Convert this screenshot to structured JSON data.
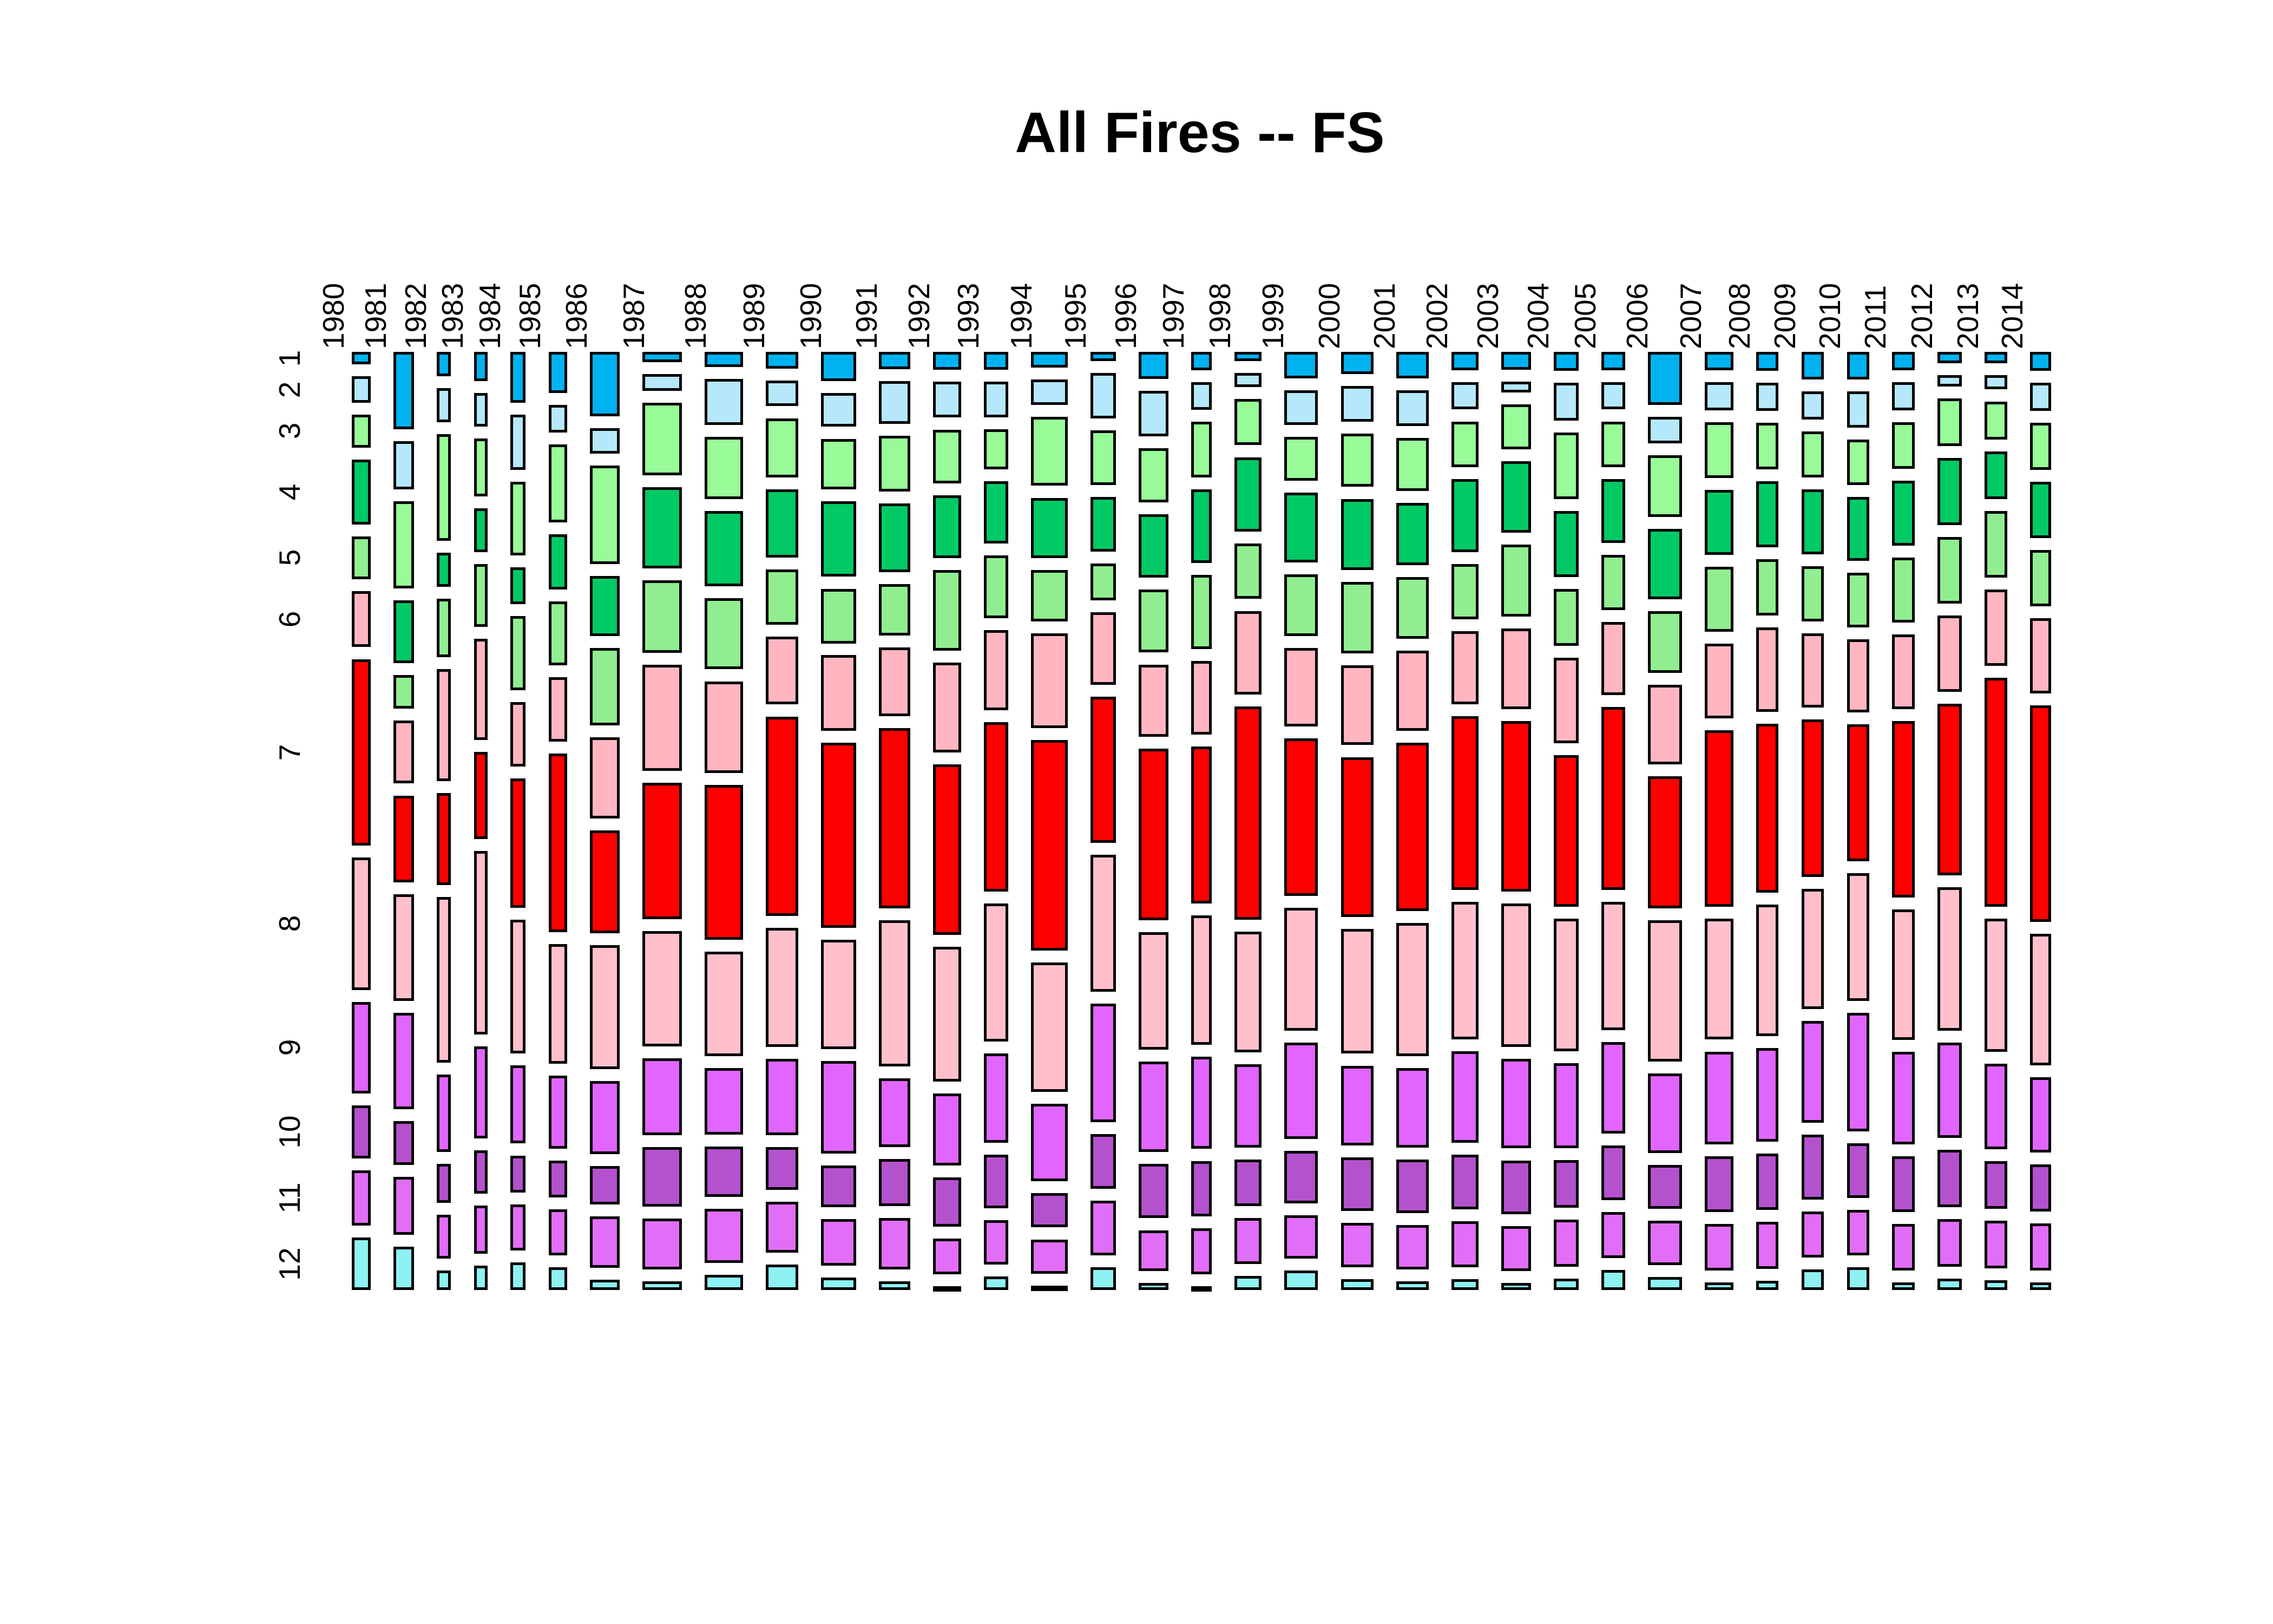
{
  "title": "All Fires -- FS",
  "y_axis_month_labels": [
    "1",
    "2",
    "3",
    "4",
    "5",
    "6",
    "7",
    "8",
    "9",
    "10",
    "11",
    "12"
  ],
  "chart_data": {
    "type": "mosaic",
    "title": "All Fires -- FS",
    "description": "Mosaic plot: columns are years 1980-2014 (width proportional to yearly total of fires, FS); stacked segments are months 1-12 (height proportional to month share within year).",
    "xlabel": "",
    "ylabel": "",
    "x_tick_labels": [
      "1980",
      "1981",
      "1982",
      "1983",
      "1984",
      "1985",
      "1986",
      "1987",
      "1988",
      "1989",
      "1990",
      "1991",
      "1992",
      "1993",
      "1994",
      "1995",
      "1996",
      "1997",
      "1998",
      "1999",
      "2000",
      "2001",
      "2002",
      "2003",
      "2004",
      "2005",
      "2006",
      "2007",
      "2008",
      "2009",
      "2010",
      "2011",
      "2012",
      "2013",
      "2014"
    ],
    "y_tick_labels": [
      "1",
      "2",
      "3",
      "4",
      "5",
      "6",
      "7",
      "8",
      "9",
      "10",
      "11",
      "12"
    ],
    "month_colors": [
      "#00B2F0",
      "#B5E8FA",
      "#98FB98",
      "#00C965",
      "#90EE90",
      "#FFB6C1",
      "#FE0000",
      "#FFC0CB",
      "#E066FF",
      "#B452CD",
      "#E26EF7",
      "#8EF1F2"
    ],
    "segment_border_color": "#000000",
    "years": [
      {
        "label": "1980",
        "width": 0.67,
        "month_shares": [
          1.3,
          2.7,
          3.4,
          6.7,
          4.4,
          5.8,
          19.2,
          13.7,
          9.4,
          5.5,
          5.7,
          5.4
        ]
      },
      {
        "label": "1981",
        "width": 0.73,
        "month_shares": [
          8,
          5,
          9,
          6.5,
          3.5,
          6.5,
          9,
          11,
          10,
          4.5,
          6,
          4.5
        ]
      },
      {
        "label": "1982",
        "width": 0.5,
        "month_shares": [
          2.5,
          3.5,
          11,
          3.5,
          6,
          11.5,
          9.5,
          17,
          8,
          4,
          4.5,
          2
        ]
      },
      {
        "label": "1983",
        "width": 0.48,
        "month_shares": [
          3,
          3.5,
          6,
          4.5,
          6.5,
          10.5,
          9,
          19,
          9.5,
          4.5,
          5,
          2.5
        ]
      },
      {
        "label": "1984",
        "width": 0.55,
        "month_shares": [
          5.5,
          6,
          8,
          4,
          8,
          7,
          14,
          14.5,
          8.5,
          4,
          5,
          3
        ]
      },
      {
        "label": "1985",
        "width": 0.65,
        "month_shares": [
          4.5,
          3,
          8.5,
          6,
          7,
          7,
          19.5,
          13,
          8,
          4,
          5,
          2.5
        ]
      },
      {
        "label": "1986",
        "width": 1.05,
        "month_shares": [
          7.5,
          3,
          11.5,
          7,
          9,
          9.5,
          12,
          14.5,
          8.5,
          4.5,
          6,
          1.2
        ]
      },
      {
        "label": "1987",
        "width": 1.4,
        "month_shares": [
          1.2,
          2,
          8.5,
          9.5,
          8.5,
          12.5,
          16,
          13.5,
          9,
          7,
          6,
          1.0
        ]
      },
      {
        "label": "1988",
        "width": 1.35,
        "month_shares": [
          1.8,
          5.5,
          7.5,
          9,
          8.5,
          11,
          18.5,
          12.5,
          8,
          6,
          6.5,
          1.8
        ]
      },
      {
        "label": "1989",
        "width": 1.15,
        "month_shares": [
          2,
          3,
          7,
          8,
          6.5,
          8,
          23.5,
          14,
          9,
          5,
          6,
          3.0
        ]
      },
      {
        "label": "1990",
        "width": 1.25,
        "month_shares": [
          3.5,
          4,
          6,
          9,
          6.5,
          9,
          22,
          13,
          11,
          5,
          5.5,
          1.5
        ]
      },
      {
        "label": "1991",
        "width": 1.1,
        "month_shares": [
          2,
          5,
          6.5,
          8,
          6,
          8,
          21,
          17,
          8,
          5.5,
          6,
          1.0
        ]
      },
      {
        "label": "1992",
        "width": 1.0,
        "month_shares": [
          2,
          4,
          6,
          7,
          9,
          10,
          19,
          15,
          8,
          5.5,
          4,
          0.4
        ]
      },
      {
        "label": "1993",
        "width": 0.85,
        "month_shares": [
          2,
          4,
          4.5,
          7,
          7,
          9,
          19,
          15.5,
          10,
          6,
          5,
          1.5
        ]
      },
      {
        "label": "1994",
        "width": 1.3,
        "month_shares": [
          1.8,
          3,
          8,
          7,
          6,
          11,
          24.5,
          15,
          9,
          4,
          4,
          0.5
        ]
      },
      {
        "label": "1995",
        "width": 0.9,
        "month_shares": [
          1,
          5,
          6,
          6,
          4,
          8,
          16,
          15,
          13,
          6,
          6,
          2.5
        ]
      },
      {
        "label": "1996",
        "width": 1.05,
        "month_shares": [
          3,
          5,
          6,
          7,
          7,
          8,
          19,
          13,
          10,
          6,
          4.5,
          0.8
        ]
      },
      {
        "label": "1997",
        "width": 0.72,
        "month_shares": [
          2,
          3,
          6,
          8,
          8,
          8,
          17,
          14,
          10,
          6,
          5,
          0.4
        ]
      },
      {
        "label": "1998",
        "width": 0.95,
        "month_shares": [
          1,
          1.5,
          5,
          8,
          6,
          9,
          23,
          13,
          9,
          5,
          5,
          1.5
        ]
      },
      {
        "label": "1999",
        "width": 1.2,
        "month_shares": [
          3,
          4,
          5,
          8,
          7,
          9,
          18,
          14,
          11,
          6,
          5,
          2.2
        ]
      },
      {
        "label": "2000",
        "width": 1.15,
        "month_shares": [
          2.5,
          4,
          6,
          8,
          8,
          9,
          18,
          14,
          9,
          6,
          5,
          1.2
        ]
      },
      {
        "label": "2001",
        "width": 1.15,
        "month_shares": [
          3,
          4,
          6,
          7,
          7,
          9,
          19,
          15,
          9,
          6,
          5,
          1.0
        ]
      },
      {
        "label": "2002",
        "width": 0.95,
        "month_shares": [
          2,
          3,
          5,
          8,
          6,
          8,
          19,
          15,
          10,
          6,
          5,
          1.2
        ]
      },
      {
        "label": "2003",
        "width": 1.05,
        "month_shares": [
          2,
          1.2,
          5,
          8,
          8,
          9,
          19,
          16,
          10,
          6,
          5,
          0.8
        ]
      },
      {
        "label": "2004",
        "width": 0.88,
        "month_shares": [
          2,
          4,
          7,
          7,
          6,
          9,
          16,
          14,
          9,
          5,
          5,
          1.2
        ]
      },
      {
        "label": "2005",
        "width": 0.85,
        "month_shares": [
          2,
          3,
          5,
          7,
          6,
          8,
          20,
          14,
          10,
          6,
          5,
          2.2
        ]
      },
      {
        "label": "2006",
        "width": 1.2,
        "month_shares": [
          6,
          3,
          7,
          8,
          7,
          9,
          15,
          16,
          9,
          5,
          5,
          1.5
        ]
      },
      {
        "label": "2007",
        "width": 1.0,
        "month_shares": [
          2,
          3,
          6,
          7,
          7,
          8,
          19,
          13,
          10,
          6,
          5,
          0.8
        ]
      },
      {
        "label": "2008",
        "width": 0.8,
        "month_shares": [
          2,
          3,
          5,
          7,
          6,
          9,
          18,
          14,
          10,
          6,
          5,
          1.0
        ]
      },
      {
        "label": "2009",
        "width": 0.8,
        "month_shares": [
          3,
          3,
          5,
          7,
          6,
          8,
          17,
          13,
          11,
          7,
          5,
          2.2
        ]
      },
      {
        "label": "2010",
        "width": 0.8,
        "month_shares": [
          3,
          4,
          5,
          7,
          6,
          8,
          15,
          14,
          13,
          6,
          5,
          2.5
        ]
      },
      {
        "label": "2011",
        "width": 0.8,
        "month_shares": [
          2,
          3,
          5,
          7,
          7,
          8,
          19,
          14,
          10,
          6,
          5,
          0.8
        ]
      },
      {
        "label": "2012",
        "width": 0.85,
        "month_shares": [
          1.2,
          1.2,
          5,
          7,
          7,
          8,
          18,
          15,
          10,
          6,
          5,
          1.2
        ]
      },
      {
        "label": "2013",
        "width": 0.8,
        "month_shares": [
          1.2,
          1.5,
          4,
          5,
          7,
          8,
          24,
          14,
          9,
          5,
          5,
          1.0
        ]
      },
      {
        "label": "2014",
        "width": 0.75,
        "month_shares": [
          2,
          3,
          5,
          6,
          6,
          8,
          23,
          14,
          8,
          5,
          5,
          0.8
        ]
      }
    ]
  }
}
